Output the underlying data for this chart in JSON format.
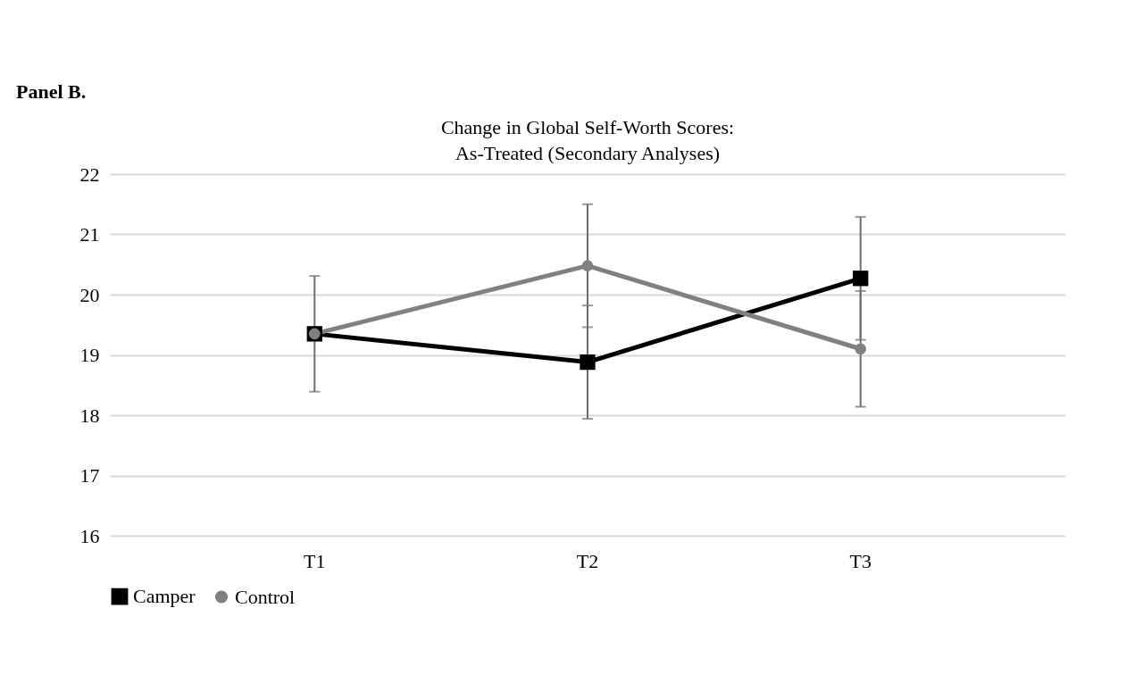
{
  "chart_data": {
    "type": "line",
    "title": "Change in Global Self-Worth Scores:",
    "subtitle": "As-Treated (Secondary Analyses)",
    "annotations": [
      "Panel B."
    ],
    "categories": [
      "T1",
      "T2",
      "T3"
    ],
    "series": [
      {
        "name": "Camper",
        "color": "#000000",
        "marker": "square",
        "values": [
          19.35,
          18.88,
          20.27
        ],
        "errors": [
          null,
          0.94,
          1.02
        ]
      },
      {
        "name": "Control",
        "color": "#808080",
        "marker": "circle",
        "values": [
          19.35,
          20.48,
          19.1
        ],
        "errors": [
          0.96,
          1.02,
          0.96
        ]
      }
    ],
    "ylim": [
      16,
      22
    ],
    "yticks": [
      16,
      17,
      18,
      19,
      20,
      21,
      22
    ],
    "grid": "y",
    "legend": "bottom"
  }
}
